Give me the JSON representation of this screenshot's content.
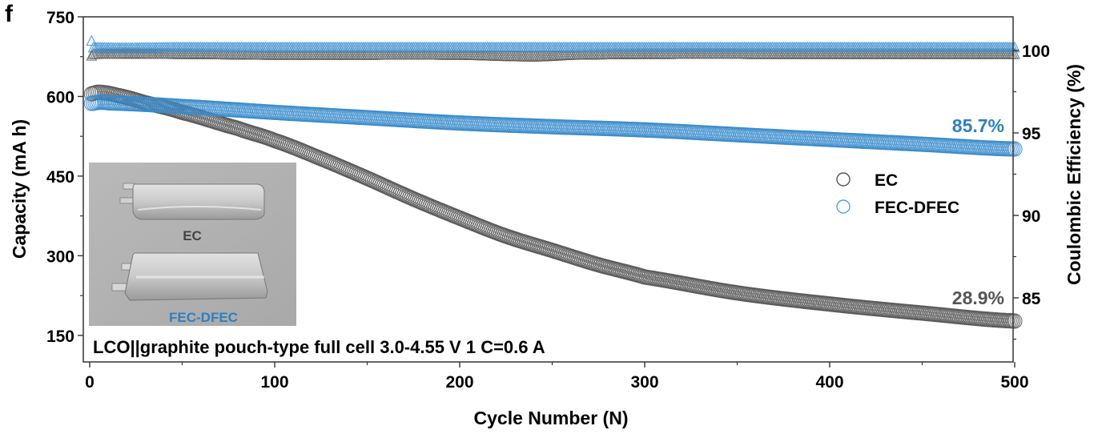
{
  "chart_data": {
    "type": "scatter",
    "panel_label": "f",
    "title": "",
    "xlabel": "Cycle Number (N)",
    "ylabel_left": "Capacity (mA h)",
    "ylabel_right": "Coulombic Efficiency (%)",
    "xlim": [
      -4,
      500
    ],
    "ylim_left": [
      100,
      750
    ],
    "ylim_right": [
      81,
      102.3
    ],
    "x_ticks": [
      0,
      100,
      200,
      300,
      400,
      500
    ],
    "x_tick_labels": [
      "0",
      "100",
      "200",
      "300",
      "400",
      "500"
    ],
    "y_left_ticks": [
      150,
      300,
      450,
      600,
      750
    ],
    "y_left_tick_labels": [
      "150",
      "300",
      "450",
      "600",
      "750"
    ],
    "y_right_ticks": [
      85,
      90,
      95,
      100
    ],
    "y_right_tick_labels": [
      "85",
      "90",
      "95",
      "100"
    ],
    "grid": false,
    "legend": {
      "placement": "center-right",
      "entries": [
        {
          "label": "EC",
          "color": "#555555"
        },
        {
          "label": "FEC-DFEC",
          "color": "#2e7fc1"
        }
      ]
    },
    "series": [
      {
        "name": "EC",
        "kind": "capacity",
        "axis": "left",
        "marker": "circle",
        "color": "#555555",
        "x": [
          1,
          5,
          15,
          30,
          50,
          80,
          100,
          125,
          150,
          175,
          200,
          225,
          250,
          275,
          300,
          350,
          400,
          450,
          500
        ],
        "y": [
          605,
          608,
          602,
          588,
          570,
          540,
          517,
          483,
          446,
          407,
          371,
          337,
          310,
          283,
          260,
          230,
          209,
          192,
          177
        ]
      },
      {
        "name": "FEC-DFEC",
        "kind": "capacity",
        "axis": "left",
        "marker": "circle",
        "color": "#2e7fc1",
        "x": [
          1,
          5,
          10,
          50,
          100,
          150,
          200,
          250,
          300,
          350,
          400,
          450,
          500
        ],
        "y": [
          587,
          589,
          588,
          581,
          570,
          560,
          550,
          543,
          537,
          528,
          519,
          510,
          501
        ]
      },
      {
        "name": "EC",
        "kind": "coulombic_efficiency",
        "axis": "right",
        "marker": "triangle",
        "color": "#555555",
        "x": [
          1,
          2,
          50,
          100,
          200,
          240,
          260,
          300,
          400,
          500
        ],
        "y": [
          99.7,
          99.8,
          99.8,
          99.75,
          99.75,
          99.65,
          99.75,
          99.8,
          99.8,
          99.8
        ]
      },
      {
        "name": "FEC-DFEC",
        "kind": "coulombic_efficiency",
        "axis": "right",
        "marker": "triangle",
        "color": "#2e7fc1",
        "x": [
          1,
          2,
          50,
          100,
          200,
          300,
          400,
          500
        ],
        "y": [
          100.6,
          100.2,
          100.2,
          100.2,
          100.2,
          100.2,
          100.2,
          100.2
        ]
      }
    ],
    "annotations": [
      {
        "text": "85.7%",
        "series": "FEC-DFEC",
        "color": "#2e7fc1"
      },
      {
        "text": "28.9%",
        "series": "EC",
        "color": "#555555"
      }
    ],
    "note": "LCO||graphite pouch-type full cell  3.0-4.55 V  1 C=0.6 A",
    "inset": {
      "description": "photo of two pouch cells",
      "labels": [
        {
          "text": "EC",
          "color": "#444444"
        },
        {
          "text": "FEC-DFEC",
          "color": "#2e7fc1"
        }
      ]
    }
  }
}
